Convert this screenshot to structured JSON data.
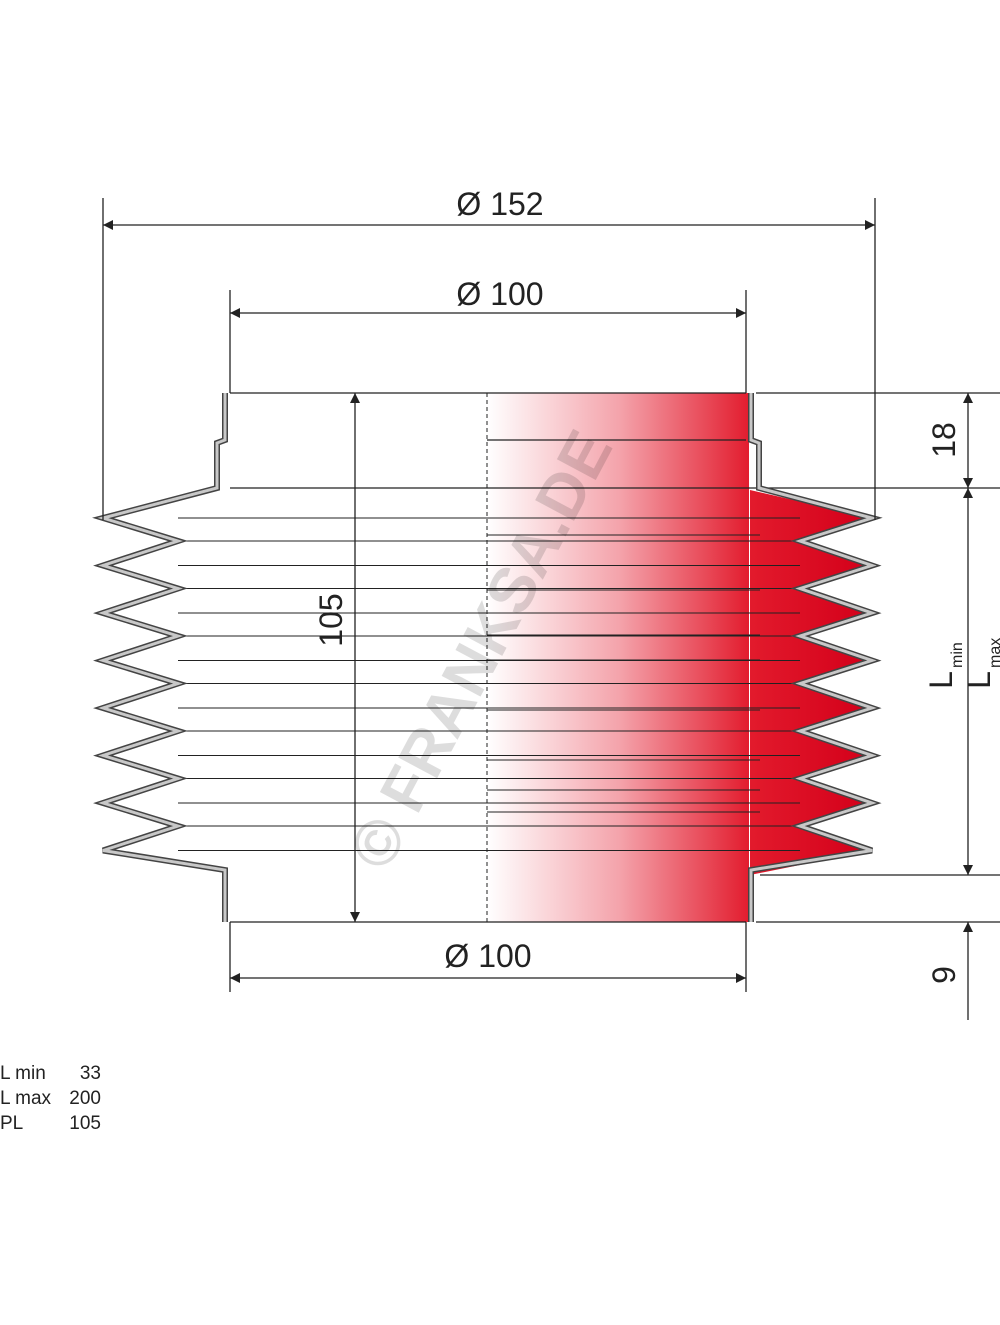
{
  "dimensions": {
    "outer_diameter": "Ø 152",
    "top_diameter": "Ø 100",
    "bottom_diameter": "Ø 100",
    "length": "105",
    "collar_top": "18",
    "collar_bottom": "9",
    "l_min": {
      "symbol": "L",
      "subscript": "min"
    },
    "l_max": {
      "symbol": "L",
      "subscript": "max"
    }
  },
  "watermark": "© FRANKSA.DE",
  "table": {
    "rows": [
      [
        "L min",
        33
      ],
      [
        "L max",
        200
      ],
      [
        "PL",
        105
      ]
    ]
  }
}
